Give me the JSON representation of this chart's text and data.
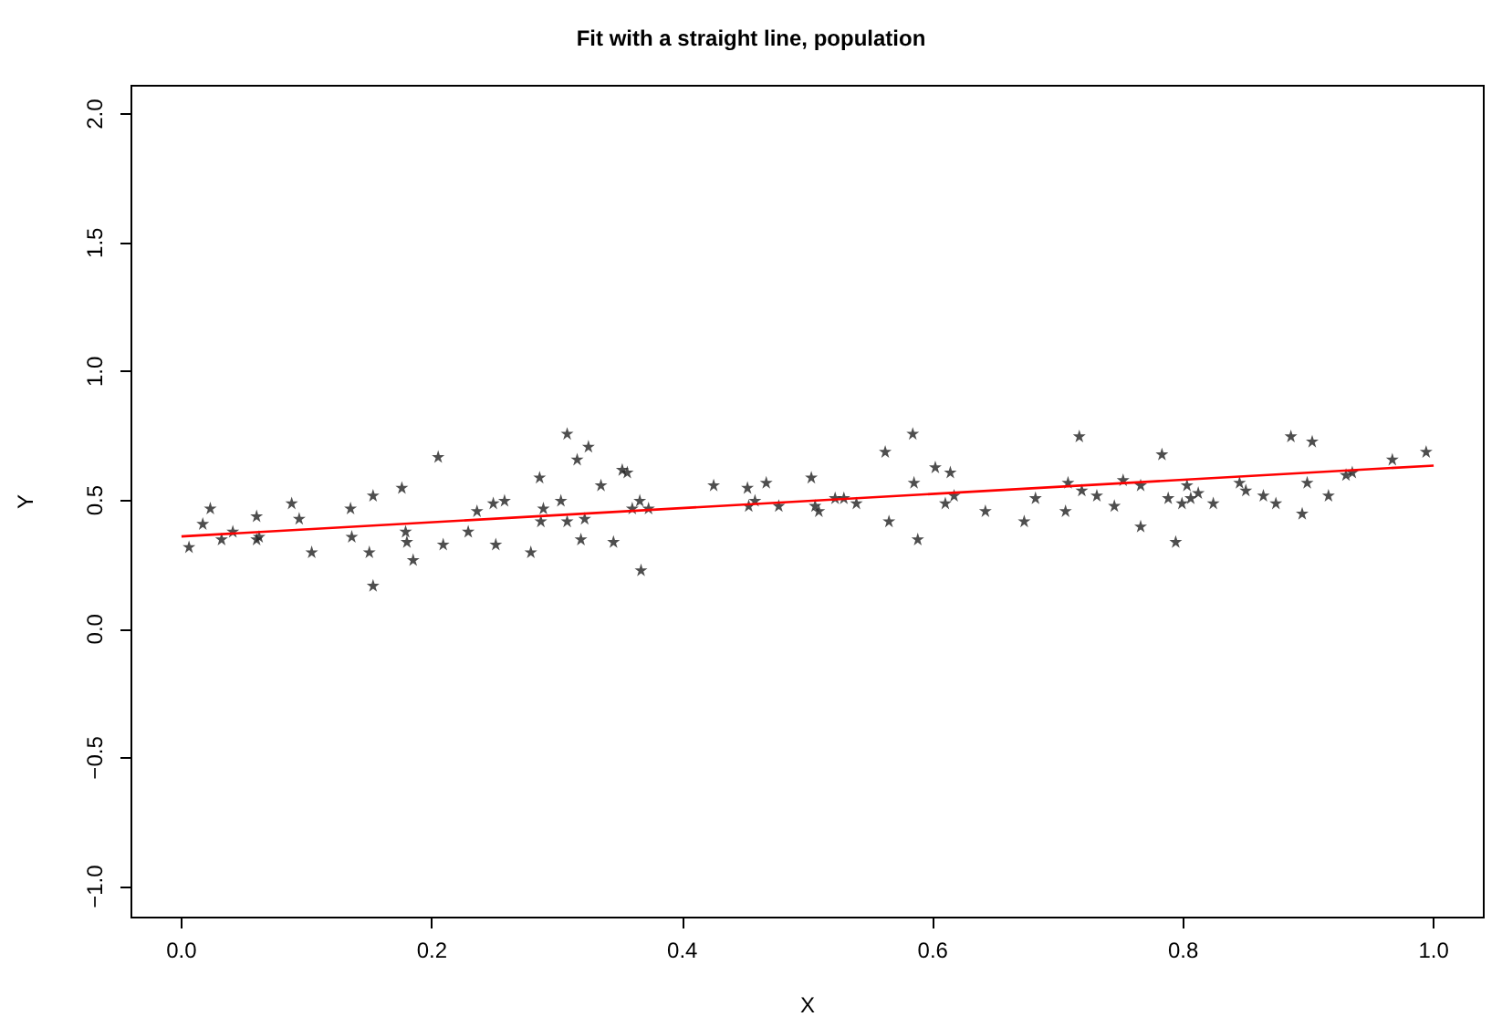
{
  "chart_data": {
    "type": "scatter",
    "title": "Fit with a straight line, population",
    "xlabel": "X",
    "ylabel": "Y",
    "xlim": [
      -0.04,
      1.04
    ],
    "ylim": [
      -1.12,
      2.11
    ],
    "xticks": [
      {
        "value": 0,
        "label": "0.0"
      },
      {
        "value": 0.2,
        "label": "0.2"
      },
      {
        "value": 0.4,
        "label": "0.4"
      },
      {
        "value": 0.6,
        "label": "0.6"
      },
      {
        "value": 0.8,
        "label": "0.8"
      },
      {
        "value": 1,
        "label": "1.0"
      }
    ],
    "yticks": [
      {
        "value": -1,
        "label": "−1.0"
      },
      {
        "value": -0.5,
        "label": "−0.5"
      },
      {
        "value": 0,
        "label": "0.0"
      },
      {
        "value": 0.5,
        "label": "0.5"
      },
      {
        "value": 1,
        "label": "1.0"
      },
      {
        "value": 1.5,
        "label": "1.5"
      },
      {
        "value": 2,
        "label": "2.0"
      }
    ],
    "marker": "star",
    "series": [
      {
        "type": "scatter",
        "color": "#222222",
        "x": [
          0.006,
          0.017,
          0.023,
          0.032,
          0.041,
          0.06,
          0.06,
          0.062,
          0.088,
          0.094,
          0.104,
          0.135,
          0.136,
          0.15,
          0.153,
          0.153,
          0.176,
          0.179,
          0.18,
          0.185,
          0.205,
          0.209,
          0.229,
          0.236,
          0.249,
          0.258,
          0.251,
          0.279,
          0.286,
          0.289,
          0.287,
          0.303,
          0.308,
          0.308,
          0.316,
          0.325,
          0.322,
          0.319,
          0.335,
          0.345,
          0.352,
          0.356,
          0.36,
          0.366,
          0.373,
          0.367,
          0.425,
          0.452,
          0.453,
          0.458,
          0.467,
          0.477,
          0.503,
          0.506,
          0.509,
          0.522,
          0.529,
          0.539,
          0.562,
          0.565,
          0.584,
          0.585,
          0.588,
          0.602,
          0.614,
          0.61,
          0.617,
          0.642,
          0.673,
          0.682,
          0.706,
          0.708,
          0.717,
          0.719,
          0.731,
          0.745,
          0.752,
          0.766,
          0.766,
          0.783,
          0.788,
          0.794,
          0.799,
          0.803,
          0.806,
          0.812,
          0.824,
          0.845,
          0.85,
          0.864,
          0.874,
          0.886,
          0.895,
          0.899,
          0.903,
          0.916,
          0.93,
          0.935,
          0.967,
          0.994
        ],
        "values": [
          0.32,
          0.41,
          0.47,
          0.35,
          0.38,
          0.44,
          0.35,
          0.36,
          0.49,
          0.43,
          0.3,
          0.47,
          0.36,
          0.3,
          0.52,
          0.17,
          0.55,
          0.38,
          0.34,
          0.27,
          0.67,
          0.33,
          0.38,
          0.46,
          0.49,
          0.5,
          0.33,
          0.3,
          0.59,
          0.47,
          0.42,
          0.5,
          0.42,
          0.76,
          0.66,
          0.71,
          0.43,
          0.35,
          0.56,
          0.34,
          0.62,
          0.61,
          0.47,
          0.5,
          0.47,
          0.23,
          0.56,
          0.55,
          0.48,
          0.5,
          0.57,
          0.48,
          0.59,
          0.48,
          0.46,
          0.51,
          0.51,
          0.49,
          0.69,
          0.42,
          0.76,
          0.57,
          0.35,
          0.63,
          0.61,
          0.49,
          0.52,
          0.46,
          0.42,
          0.51,
          0.46,
          0.57,
          0.75,
          0.54,
          0.52,
          0.48,
          0.58,
          0.56,
          0.4,
          0.68,
          0.51,
          0.34,
          0.49,
          0.56,
          0.51,
          0.53,
          0.49,
          0.57,
          0.54,
          0.52,
          0.49,
          0.75,
          0.45,
          0.57,
          0.73,
          0.52,
          0.6,
          0.61,
          0.66,
          0.69
        ]
      },
      {
        "type": "line",
        "color": "#ff0000",
        "marker": "none",
        "x": [
          0.0,
          1.0
        ],
        "values": [
          0.36,
          0.635
        ]
      }
    ]
  }
}
